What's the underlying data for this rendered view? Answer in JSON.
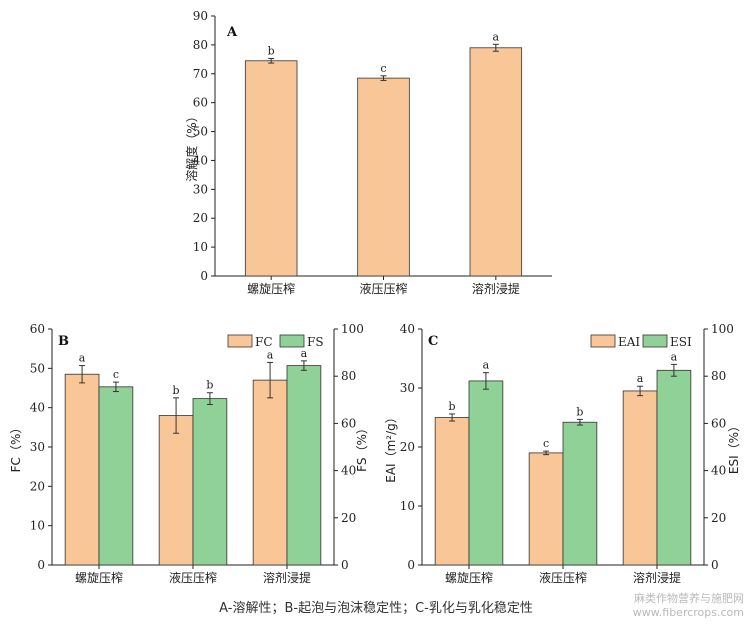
{
  "caption": "A-溶解性；B-起泡与泡沫稳定性；C-乳化与乳化稳定性",
  "watermark": {
    "line1": "麻类作物营养与施肥网",
    "line2": "www.fibercrops.com"
  },
  "colors": {
    "orange": "#f9c698",
    "green": "#8fd197",
    "edge": "#333333"
  },
  "chart_data": [
    {
      "panel": "A",
      "type": "bar",
      "categories": [
        "螺旋压榨",
        "液压压榨",
        "溶剂浸提"
      ],
      "ylabel": "溶解度（%）",
      "ylim": [
        0,
        90
      ],
      "yticks": [
        0,
        10,
        20,
        30,
        40,
        50,
        60,
        70,
        80,
        90
      ],
      "series": [
        {
          "values": [
            74.5,
            68.5,
            79
          ],
          "errors": [
            0.8,
            0.8,
            1.2
          ],
          "letters": [
            "b",
            "c",
            "a"
          ]
        }
      ]
    },
    {
      "panel": "B",
      "type": "bar",
      "categories": [
        "螺旋压榨",
        "液压压榨",
        "溶剂浸提"
      ],
      "ylabel_left": "FC（%）",
      "ylabel_right": "FS（%）",
      "ylim_left": [
        0,
        60
      ],
      "ylim_right": [
        0,
        100
      ],
      "yticks_left": [
        0,
        10,
        20,
        30,
        40,
        50,
        60
      ],
      "yticks_right": [
        0,
        20,
        40,
        60,
        80,
        100
      ],
      "legend_position": "top-right",
      "series": [
        {
          "name": "FC",
          "axis": "left",
          "values": [
            48.5,
            38,
            47
          ],
          "errors": [
            2.2,
            4.5,
            4.5
          ],
          "letters": [
            "a",
            "b",
            "a"
          ]
        },
        {
          "name": "FS",
          "axis": "right",
          "values": [
            75.5,
            70.5,
            84.5
          ],
          "errors": [
            2.0,
            2.5,
            2.0
          ],
          "letters": [
            "c",
            "b",
            "a"
          ]
        }
      ]
    },
    {
      "panel": "C",
      "type": "bar",
      "categories": [
        "螺旋压榨",
        "液压压榨",
        "溶剂浸提"
      ],
      "ylabel_left": "EAI（m²/g）",
      "ylabel_right": "ESI（%）",
      "ylim_left": [
        0,
        40
      ],
      "ylim_right": [
        0,
        100
      ],
      "yticks_left": [
        0,
        10,
        20,
        30,
        40
      ],
      "yticks_right": [
        0,
        20,
        40,
        60,
        80,
        100
      ],
      "legend_position": "top-right",
      "series": [
        {
          "name": "EAI",
          "axis": "left",
          "values": [
            25,
            19,
            29.5
          ],
          "errors": [
            0.6,
            0.3,
            0.8
          ],
          "letters": [
            "b",
            "c",
            "a"
          ]
        },
        {
          "name": "ESI",
          "axis": "right",
          "values": [
            78,
            60.5,
            82.5
          ],
          "errors": [
            3.5,
            1.2,
            2.5
          ],
          "letters": [
            "a",
            "b",
            "a"
          ]
        }
      ]
    }
  ]
}
